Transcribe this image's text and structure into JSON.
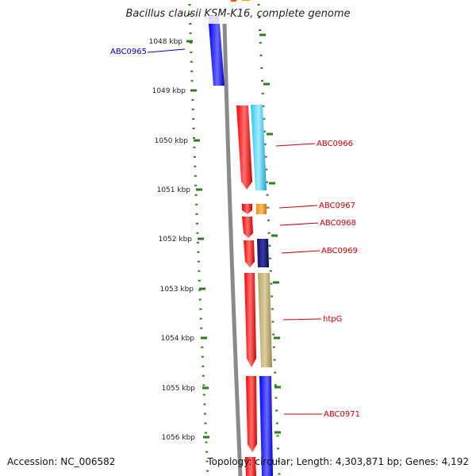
{
  "title": "Bacillus clausii KSM-K16, complete genome",
  "footer": {
    "accession": "Accession: NC_006582",
    "summary": "Topology: circular; Length: 4,303,871 bp; Genes: 4,192"
  },
  "ruler": {
    "ticks": [
      "1048 kbp",
      "1049 kbp",
      "1050 kbp",
      "1051 kbp",
      "1052 kbp",
      "1053 kbp",
      "1054 kbp",
      "1055 kbp",
      "1056 kbp"
    ],
    "tick_color": "#2e7d1e"
  },
  "colors": {
    "backbone": "#808080",
    "forward_strand_genes": "#ff0000",
    "cog_cyan": "#29c6f0",
    "cog_orange": "#ff8c00",
    "cog_navy": "#0a0a78",
    "cog_khaki": "#b7a467",
    "cog_blue": "#0000ff"
  },
  "gene_labels": [
    {
      "name": "ABC0965",
      "color": "#0000cc"
    },
    {
      "name": "ABC0966",
      "color": "#cc0000"
    },
    {
      "name": "ABC0967",
      "color": "#cc0000"
    },
    {
      "name": "ABC0968",
      "color": "#cc0000"
    },
    {
      "name": "ABC0969",
      "color": "#cc0000"
    },
    {
      "name": "htpG",
      "color": "#cc0000"
    },
    {
      "name": "ABC0971",
      "color": "#cc0000"
    }
  ]
}
